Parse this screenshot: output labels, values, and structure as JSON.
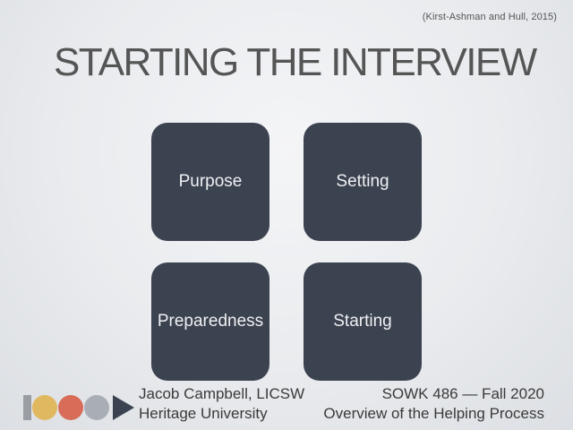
{
  "slide": {
    "citation": "(Kirst-Ashman and Hull, 2015)",
    "title": "STARTING THE INTERVIEW",
    "tiles": [
      {
        "label": "Purpose"
      },
      {
        "label": "Setting"
      },
      {
        "label": "Preparedness"
      },
      {
        "label": "Starting"
      }
    ]
  },
  "footer": {
    "author": "Jacob Campbell, LICSW",
    "institution": "Heritage University",
    "course": "SOWK 486 — Fall 2020",
    "course_title": "Overview of the Helping Process"
  },
  "colors": {
    "tile": "#3c4350",
    "logo_bar": "#9a9da3",
    "logo_circle_1": "#e0b85f",
    "logo_circle_2": "#d86c58",
    "logo_circle_3": "#a8adb6",
    "logo_arrow": "#3c4350"
  }
}
